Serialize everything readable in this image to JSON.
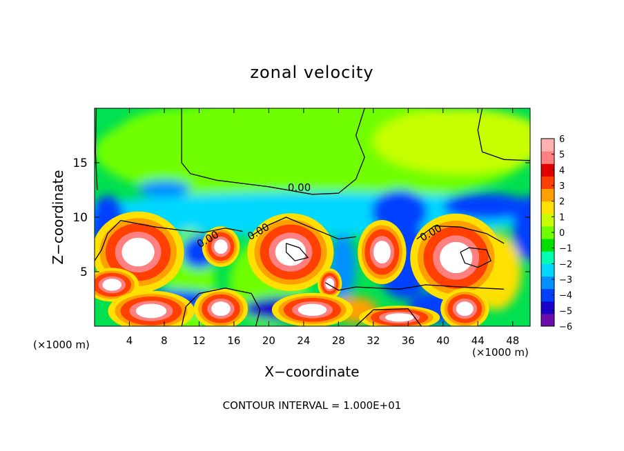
{
  "chart_data": {
    "type": "heatmap",
    "title": "zonal velocity",
    "xlabel": "X−coordinate",
    "ylabel": "Z−coordinate",
    "x_units_left": "(×1000 m)",
    "x_units_right": "(×1000 m)",
    "footer": "CONTOUR INTERVAL = 1.000E+01",
    "xlim": [
      0,
      50
    ],
    "ylim": [
      0,
      20
    ],
    "x_ticks": [
      4,
      8,
      12,
      16,
      20,
      24,
      28,
      32,
      36,
      40,
      44,
      48
    ],
    "x_tick_labels": [
      "4",
      "8",
      "12",
      "16",
      "20",
      "24",
      "28",
      "32",
      "36",
      "40",
      "44",
      "48"
    ],
    "y_ticks": [
      5,
      10,
      15
    ],
    "y_tick_labels": [
      "5",
      "10",
      "15"
    ],
    "colorbar": {
      "min": -6,
      "max": 6,
      "tick_values": [
        6,
        5,
        4,
        3,
        2,
        1,
        0,
        -1,
        -2,
        -3,
        -4,
        -5,
        -6
      ],
      "tick_labels": [
        "6",
        "5",
        "4",
        "3",
        "2",
        "1",
        "0",
        "−1",
        "−2",
        "−3",
        "−4",
        "−5",
        "−6"
      ],
      "colors": [
        "#6a0dad",
        "#1a00c8",
        "#0040ff",
        "#0090ff",
        "#00d8ff",
        "#00ffb0",
        "#00e000",
        "#70ff00",
        "#c8ff00",
        "#ffe000",
        "#ffa000",
        "#ff4000",
        "#e00000",
        "#ff8080",
        "#ffb0b0"
      ]
    },
    "contour_labels": [
      {
        "text": "0.00",
        "x": 23.5,
        "y": 12.4
      },
      {
        "text": "0.00",
        "x": 13.2,
        "y": 7.7
      },
      {
        "text": "0.00",
        "x": 19.0,
        "y": 8.4
      },
      {
        "text": "0.00",
        "x": 38.8,
        "y": 8.3
      }
    ],
    "warm_cells": [
      {
        "x": 5.0,
        "y": 6.8,
        "a": 3.4,
        "b": 2.4,
        "v": 12
      },
      {
        "x": 2.0,
        "y": 3.8,
        "a": 2.0,
        "b": 1.0,
        "v": 11
      },
      {
        "x": 14.5,
        "y": 7.3,
        "a": 1.4,
        "b": 1.2,
        "v": 11
      },
      {
        "x": 22.5,
        "y": 6.8,
        "a": 3.2,
        "b": 2.3,
        "v": 12
      },
      {
        "x": 27.0,
        "y": 3.9,
        "a": 0.9,
        "b": 0.9,
        "v": 11
      },
      {
        "x": 33.0,
        "y": 6.8,
        "a": 1.8,
        "b": 1.9,
        "v": 12
      },
      {
        "x": 41.5,
        "y": 6.3,
        "a": 3.4,
        "b": 2.6,
        "v": 12
      },
      {
        "x": 14.5,
        "y": 1.6,
        "a": 2.0,
        "b": 1.2,
        "v": 11
      },
      {
        "x": 6.5,
        "y": 1.4,
        "a": 3.2,
        "b": 1.2,
        "v": 11
      },
      {
        "x": 25.0,
        "y": 1.5,
        "a": 3.0,
        "b": 1.0,
        "v": 11
      },
      {
        "x": 42.5,
        "y": 1.6,
        "a": 1.8,
        "b": 1.2,
        "v": 11
      },
      {
        "x": 35.0,
        "y": 0.8,
        "a": 3.0,
        "b": 0.7,
        "v": 11
      }
    ]
  }
}
